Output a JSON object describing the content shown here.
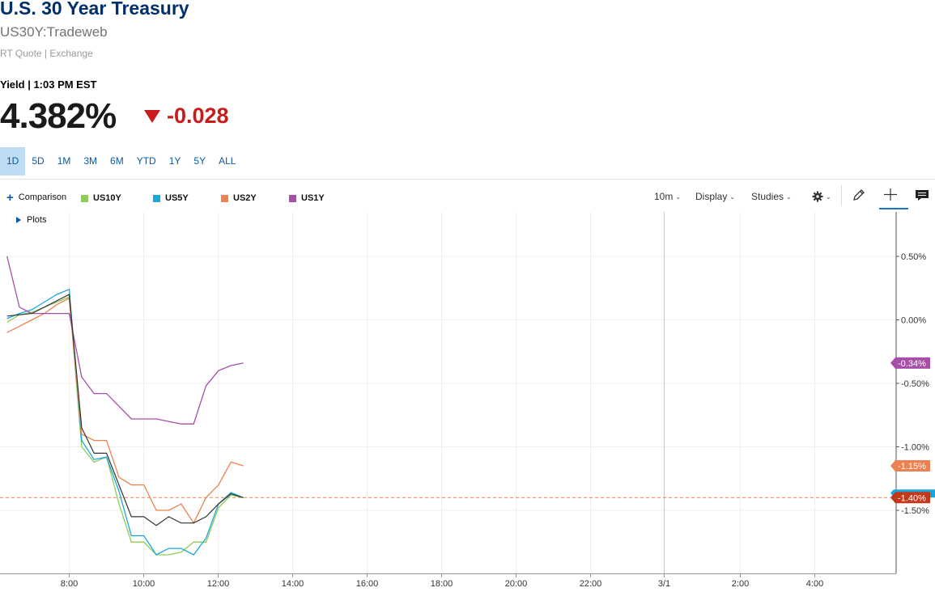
{
  "header": {
    "title": "U.S. 30 Year Treasury",
    "symbol": "US30Y:Tradeweb",
    "quote_source": "RT Quote | Exchange",
    "yield_label": "Yield | 1:03 PM EST",
    "price": "4.382%",
    "change": "-0.028"
  },
  "ranges": [
    "1D",
    "5D",
    "1M",
    "3M",
    "6M",
    "YTD",
    "1Y",
    "5Y",
    "ALL"
  ],
  "active_range": "1D",
  "toolbar": {
    "comparison_label": "Comparison",
    "interval": "10m",
    "display_label": "Display",
    "studies_label": "Studies",
    "plots_label": "Plots"
  },
  "icons": [
    "plus-icon",
    "gear-icon",
    "pencil-icon",
    "crosshair-icon",
    "comment-icon",
    "chevron-down-icon",
    "triangle-down-icon",
    "triangle-right-icon"
  ],
  "colors": {
    "title": "#002f6c",
    "down": "#c91c1c",
    "US30Y": "#333333",
    "US10Y": "#8fcc5a",
    "US5Y": "#1aa7e0",
    "US2Y": "#ec8250",
    "US1Y": "#a64ea8",
    "range_active_bg": "#bfdcf5"
  },
  "chart_data": {
    "type": "line",
    "x_ticks": [
      "8:00",
      "10:00",
      "12:00",
      "14:00",
      "16:00",
      "18:00",
      "20:00",
      "22:00",
      "3/1",
      "2:00",
      "4:00"
    ],
    "y_ticks": [
      0.5,
      0.0,
      -0.5,
      -1.0,
      -1.5
    ],
    "y_tick_labels": [
      "0.50%",
      "0.00%",
      "-0.50%",
      "-1.00%",
      "-1.50%"
    ],
    "ylim": [
      -2.0,
      0.8
    ],
    "reference_line": -1.4,
    "end_labels": [
      {
        "series": "US1Y",
        "label": "-0.34%",
        "value": -0.34
      },
      {
        "series": "US2Y",
        "label": "-1.15%",
        "value": -1.15
      },
      {
        "series": "US30Y",
        "label": "-1.40%",
        "value": -1.4
      }
    ],
    "x": [
      "6:20",
      "6:40",
      "7:00",
      "7:20",
      "7:40",
      "8:00",
      "8:20",
      "8:40",
      "9:00",
      "9:20",
      "9:40",
      "10:00",
      "10:20",
      "10:40",
      "11:00",
      "11:20",
      "11:40",
      "12:00",
      "12:20",
      "12:40"
    ],
    "series": [
      {
        "name": "US10Y",
        "color": "#8fcc5a",
        "values": [
          -0.02,
          0.04,
          0.06,
          0.1,
          0.14,
          0.18,
          -1.0,
          -1.12,
          -1.08,
          -1.45,
          -1.75,
          -1.75,
          -1.85,
          -1.85,
          -1.83,
          -1.75,
          -1.75,
          -1.48,
          -1.38,
          -1.4
        ]
      },
      {
        "name": "US5Y",
        "color": "#1aa7e0",
        "values": [
          0.01,
          0.05,
          0.08,
          0.14,
          0.2,
          0.24,
          -0.95,
          -1.1,
          -1.08,
          -1.35,
          -1.7,
          -1.7,
          -1.85,
          -1.8,
          -1.8,
          -1.85,
          -1.72,
          -1.45,
          -1.36,
          -1.4
        ]
      },
      {
        "name": "US2Y",
        "color": "#ec8250",
        "values": [
          -0.1,
          -0.05,
          0.0,
          0.05,
          0.12,
          0.17,
          -0.9,
          -0.95,
          -0.95,
          -1.24,
          -1.3,
          -1.3,
          -1.5,
          -1.5,
          -1.45,
          -1.6,
          -1.4,
          -1.3,
          -1.12,
          -1.15
        ]
      },
      {
        "name": "US1Y",
        "color": "#a64ea8",
        "values": [
          0.5,
          0.1,
          0.05,
          0.05,
          0.05,
          0.05,
          -0.45,
          -0.58,
          -0.58,
          -0.68,
          -0.78,
          -0.78,
          -0.78,
          -0.8,
          -0.82,
          -0.82,
          -0.52,
          -0.4,
          -0.36,
          -0.34
        ]
      },
      {
        "name": "US30Y",
        "color": "#333333",
        "values": [
          0.03,
          0.04,
          0.05,
          0.1,
          0.15,
          0.2,
          -0.85,
          -1.05,
          -1.05,
          -1.3,
          -1.55,
          -1.55,
          -1.62,
          -1.55,
          -1.6,
          -1.6,
          -1.55,
          -1.45,
          -1.37,
          -1.4
        ]
      }
    ],
    "legend": [
      "US10Y",
      "US5Y",
      "US2Y",
      "US1Y"
    ],
    "legend_placement": "top-left",
    "grid": true
  }
}
